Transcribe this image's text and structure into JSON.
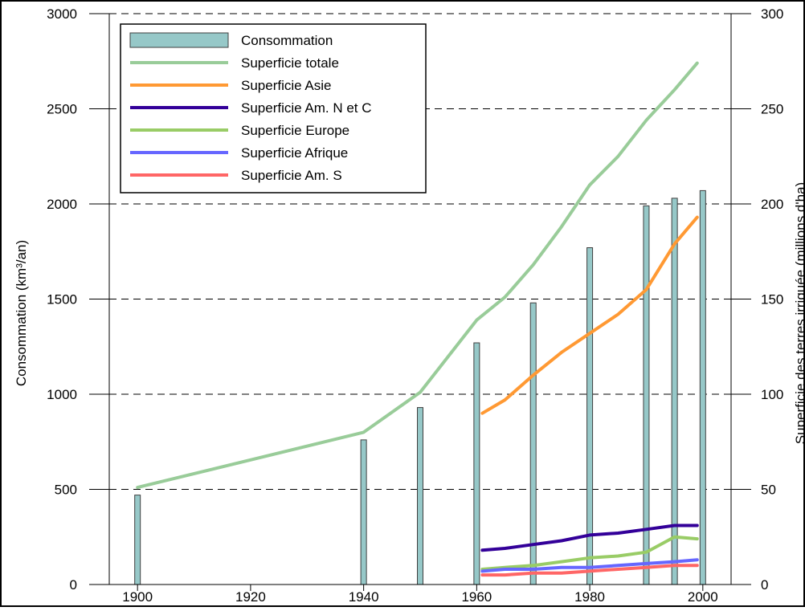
{
  "chart_data": {
    "type": "bar+line",
    "colors": {
      "bars": "#96c8c8",
      "bar_stroke": "#3f3f3f",
      "axis": "#000000"
    },
    "x_ticks": [
      1900,
      1920,
      1940,
      1960,
      1980,
      2000
    ],
    "xlim": [
      1895,
      2005
    ],
    "left_axis": {
      "label": "Consommation (km³/an)",
      "ylim": [
        0,
        3000
      ],
      "ticks": [
        0,
        500,
        1000,
        1500,
        2000,
        2500,
        3000
      ]
    },
    "right_axis": {
      "label": "Superficie des terres irriguée (millions d'ha)",
      "ylim": [
        0,
        300
      ],
      "ticks": [
        0,
        50,
        100,
        150,
        200,
        250,
        300
      ]
    },
    "grid": "horizontal dashed",
    "legend_position": "top-left",
    "bars": {
      "name": "Consommation",
      "axis": "left",
      "x": [
        1900,
        1940,
        1950,
        1960,
        1970,
        1980,
        1990,
        1995,
        2000
      ],
      "values": [
        470,
        760,
        930,
        1270,
        1480,
        1770,
        1990,
        2030,
        2070
      ]
    },
    "series": [
      {
        "name": "Superficie totale",
        "axis": "right",
        "color": "#99cc99",
        "x": [
          1900,
          1940,
          1950,
          1960,
          1965,
          1970,
          1975,
          1980,
          1985,
          1990,
          1995,
          1999
        ],
        "values": [
          51,
          80,
          101,
          139,
          151,
          168,
          188,
          210,
          225,
          244,
          260,
          274
        ]
      },
      {
        "name": "Superficie Asie",
        "axis": "right",
        "color": "#ff9933",
        "x": [
          1961,
          1965,
          1970,
          1975,
          1980,
          1985,
          1990,
          1995,
          1999
        ],
        "values": [
          90,
          97,
          110,
          122,
          132,
          142,
          155,
          179,
          193
        ]
      },
      {
        "name": "Superficie Am. N et C",
        "axis": "right",
        "color": "#330099",
        "x": [
          1961,
          1965,
          1970,
          1975,
          1980,
          1985,
          1990,
          1995,
          1999
        ],
        "values": [
          18,
          19,
          21,
          23,
          26,
          27,
          29,
          31,
          31
        ]
      },
      {
        "name": "Superficie Europe",
        "axis": "right",
        "color": "#99cc66",
        "x": [
          1961,
          1965,
          1970,
          1975,
          1980,
          1985,
          1990,
          1995,
          1999
        ],
        "values": [
          8,
          9,
          10,
          12,
          14,
          15,
          17,
          25,
          24
        ]
      },
      {
        "name": "Superficie Afrique",
        "axis": "right",
        "color": "#6666ff",
        "x": [
          1961,
          1965,
          1970,
          1975,
          1980,
          1985,
          1990,
          1995,
          1999
        ],
        "values": [
          7,
          8,
          8,
          9,
          9,
          10,
          11,
          12,
          13
        ]
      },
      {
        "name": "Superficie Am. S",
        "axis": "right",
        "color": "#ff6666",
        "x": [
          1961,
          1965,
          1970,
          1975,
          1980,
          1985,
          1990,
          1995,
          1999
        ],
        "values": [
          5,
          5,
          6,
          6,
          7,
          8,
          9,
          10,
          10
        ]
      }
    ]
  }
}
